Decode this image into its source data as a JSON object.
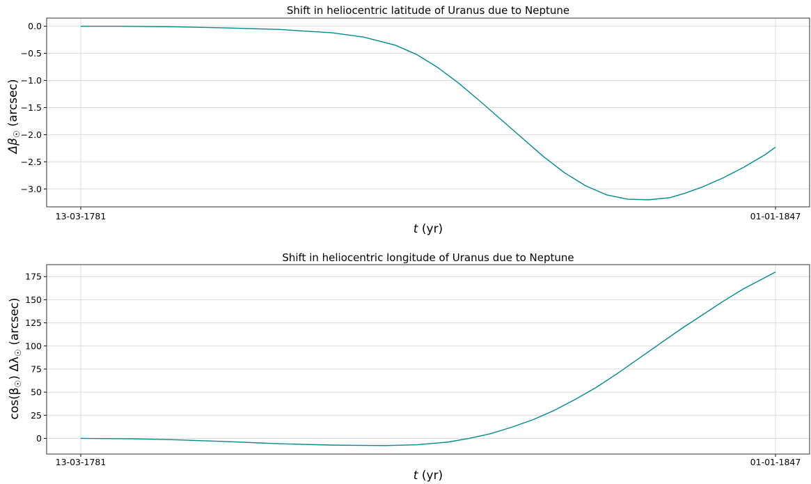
{
  "chart_data": [
    {
      "type": "line",
      "title": "Shift in heliocentric latitude of Uranus due to Neptune",
      "xlabel_var": "t",
      "xlabel_unit": " (yr)",
      "ylabel": "Δβ☉ (arcsec)",
      "ylabel_sym": "Δβ",
      "ylabel_sub": "☉",
      "ylabel_unit": " (arcsec)",
      "xlim": [
        1781.196,
        1847.0
      ],
      "ylim": [
        -3.33,
        0.15
      ],
      "x_ticks": [
        {
          "value": 1781.196,
          "label": "13-03-1781"
        },
        {
          "value": 1847.0,
          "label": "01-01-1847"
        }
      ],
      "y_ticks": [
        0.0,
        -0.5,
        -1.0,
        -1.5,
        -2.0,
        -2.5,
        -3.0
      ],
      "y_tick_labels": [
        "0.0",
        "−0.5",
        "−1.0",
        "−1.5",
        "−2.0",
        "−2.5",
        "−3.0"
      ],
      "grid": true,
      "color": "#008b8b",
      "series": [
        {
          "x": [
            1781.196,
            1785.0,
            1790.0,
            1795.0,
            1800.0,
            1805.0,
            1808.0,
            1811.0,
            1813.0,
            1815.0,
            1817.0,
            1819.0,
            1821.0,
            1823.0,
            1825.0,
            1827.0,
            1829.0,
            1831.0,
            1833.0,
            1835.0,
            1837.0,
            1838.4,
            1840.0,
            1842.0,
            1844.0,
            1846.0,
            1847.0
          ],
          "y": [
            0.0,
            0.0,
            -0.01,
            -0.03,
            -0.06,
            -0.12,
            -0.2,
            -0.35,
            -0.52,
            -0.76,
            -1.05,
            -1.38,
            -1.72,
            -2.06,
            -2.4,
            -2.7,
            -2.94,
            -3.11,
            -3.19,
            -3.2,
            -3.16,
            -3.08,
            -2.97,
            -2.8,
            -2.6,
            -2.37,
            -2.23
          ]
        }
      ]
    },
    {
      "type": "line",
      "title": "Shift in heliocentric longitude of Uranus due to Neptune",
      "xlabel_var": "t",
      "xlabel_unit": " (yr)",
      "ylabel": "cos(β☉) Δλ☉ (arcsec)",
      "ylabel_sym": "cos(β",
      "ylabel_sub": "☉",
      "ylabel_mid": ") Δλ",
      "ylabel_sub2": "☉",
      "ylabel_unit": " (arcsec)",
      "xlim": [
        1781.196,
        1847.0
      ],
      "ylim": [
        -17,
        188
      ],
      "x_ticks": [
        {
          "value": 1781.196,
          "label": "13-03-1781"
        },
        {
          "value": 1847.0,
          "label": "01-01-1847"
        }
      ],
      "y_ticks": [
        0,
        25,
        50,
        75,
        100,
        125,
        150,
        175
      ],
      "y_tick_labels": [
        "0",
        "25",
        "50",
        "75",
        "100",
        "125",
        "150",
        "175"
      ],
      "grid": true,
      "color": "#008b8b",
      "series": [
        {
          "x": [
            1781.196,
            1786.0,
            1790.0,
            1795.0,
            1800.0,
            1805.0,
            1810.0,
            1813.0,
            1816.0,
            1818.0,
            1820.0,
            1822.0,
            1824.0,
            1826.0,
            1828.0,
            1830.0,
            1832.0,
            1834.0,
            1836.0,
            1838.0,
            1840.0,
            1842.0,
            1844.0,
            1846.0,
            1847.0
          ],
          "y": [
            0.0,
            -0.5,
            -1.5,
            -3.5,
            -5.8,
            -7.3,
            -7.8,
            -7.0,
            -4.0,
            0.0,
            5.0,
            12.0,
            20.0,
            30.0,
            42.0,
            55.0,
            70.0,
            86.0,
            102.0,
            118.0,
            133.0,
            148.0,
            162.0,
            174.0,
            180.0
          ]
        }
      ]
    }
  ]
}
